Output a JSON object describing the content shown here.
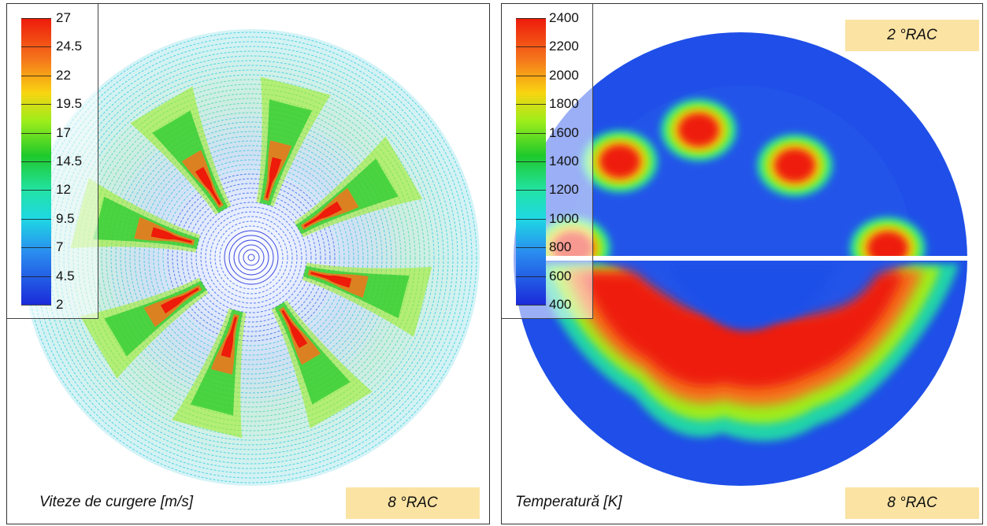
{
  "left_panel": {
    "caption": "Viteze de curgere [m/s]",
    "tag": "8 °RAC",
    "legend_ticks": [
      "27",
      "24.5",
      "22",
      "19.5",
      "17",
      "14.5",
      "12",
      "9.5",
      "7",
      "4.5",
      "2"
    ]
  },
  "right_panel": {
    "caption": "Temperatură [K]",
    "tag_top": "2 °RAC",
    "tag_bottom": "8 °RAC",
    "legend_ticks": [
      "2400",
      "2200",
      "2000",
      "1800",
      "1600",
      "1400",
      "1200",
      "1000",
      "800",
      "600",
      "400"
    ]
  },
  "colors": {
    "hot": "#ee1a0a",
    "cold": "#1b2bda",
    "tag_bg": "#fbe3a3"
  }
}
